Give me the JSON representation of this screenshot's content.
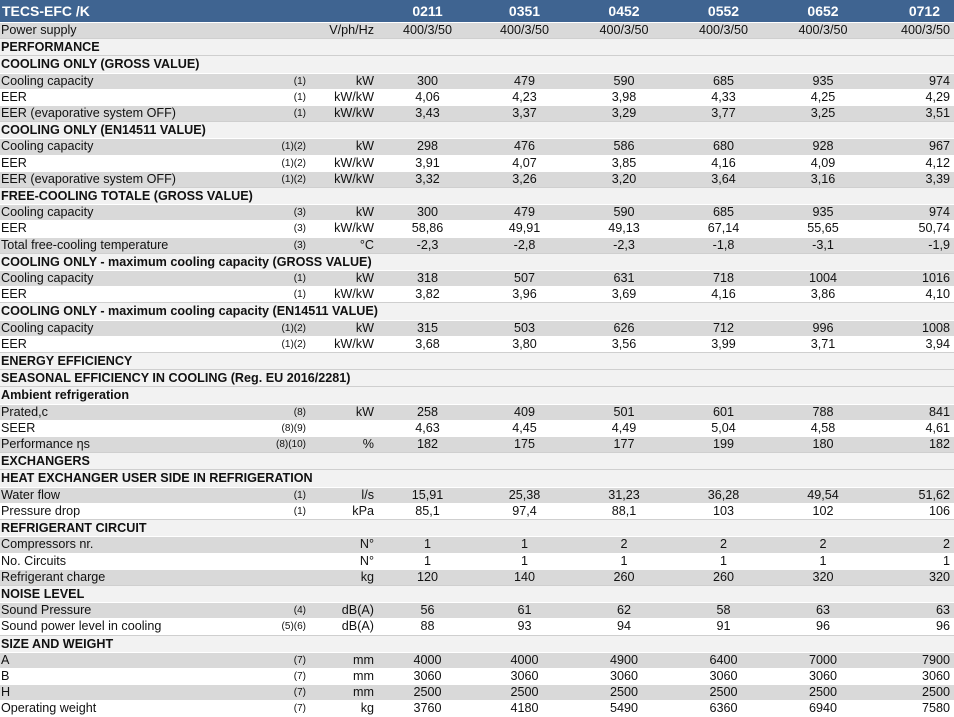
{
  "title": "TECS-EFC /K",
  "models": [
    "0211",
    "0351",
    "0452",
    "0552",
    "0652",
    "0712"
  ],
  "rows": [
    {
      "type": "row",
      "label": "Power supply",
      "note": "",
      "unit": "V/ph/Hz",
      "values": [
        "400/3/50",
        "400/3/50",
        "400/3/50",
        "400/3/50",
        "400/3/50",
        "400/3/50"
      ]
    },
    {
      "type": "section",
      "label": "PERFORMANCE"
    },
    {
      "type": "section",
      "label": "COOLING ONLY (GROSS VALUE)"
    },
    {
      "type": "row",
      "label": "Cooling capacity",
      "note": "(1)",
      "unit": "kW",
      "values": [
        "300",
        "479",
        "590",
        "685",
        "935",
        "974"
      ]
    },
    {
      "type": "row",
      "label": "EER",
      "note": "(1)",
      "unit": "kW/kW",
      "values": [
        "4,06",
        "4,23",
        "3,98",
        "4,33",
        "4,25",
        "4,29"
      ]
    },
    {
      "type": "row",
      "label": "EER (evaporative system OFF)",
      "note": "(1)",
      "unit": "kW/kW",
      "values": [
        "3,43",
        "3,37",
        "3,29",
        "3,77",
        "3,25",
        "3,51"
      ]
    },
    {
      "type": "section",
      "label": "COOLING ONLY (EN14511 VALUE)"
    },
    {
      "type": "row",
      "label": "Cooling capacity",
      "note": "(1)(2)",
      "unit": "kW",
      "values": [
        "298",
        "476",
        "586",
        "680",
        "928",
        "967"
      ]
    },
    {
      "type": "row",
      "label": "EER",
      "note": "(1)(2)",
      "unit": "kW/kW",
      "values": [
        "3,91",
        "4,07",
        "3,85",
        "4,16",
        "4,09",
        "4,12"
      ]
    },
    {
      "type": "row",
      "label": "EER (evaporative system OFF)",
      "note": "(1)(2)",
      "unit": "kW/kW",
      "values": [
        "3,32",
        "3,26",
        "3,20",
        "3,64",
        "3,16",
        "3,39"
      ]
    },
    {
      "type": "section",
      "label": "FREE-COOLING TOTALE (GROSS VALUE)"
    },
    {
      "type": "row",
      "label": "Cooling capacity",
      "note": "(3)",
      "unit": "kW",
      "values": [
        "300",
        "479",
        "590",
        "685",
        "935",
        "974"
      ]
    },
    {
      "type": "row",
      "label": "EER",
      "note": "(3)",
      "unit": "kW/kW",
      "values": [
        "58,86",
        "49,91",
        "49,13",
        "67,14",
        "55,65",
        "50,74"
      ]
    },
    {
      "type": "row",
      "label": "Total free-cooling temperature",
      "note": "(3)",
      "unit": "°C",
      "values": [
        "-2,3",
        "-2,8",
        "-2,3",
        "-1,8",
        "-3,1",
        "-1,9"
      ]
    },
    {
      "type": "section",
      "label": "COOLING ONLY - maximum cooling capacity (GROSS VALUE)"
    },
    {
      "type": "row",
      "label": "Cooling capacity",
      "note": "(1)",
      "unit": "kW",
      "values": [
        "318",
        "507",
        "631",
        "718",
        "1004",
        "1016"
      ]
    },
    {
      "type": "row",
      "label": "EER",
      "note": "(1)",
      "unit": "kW/kW",
      "values": [
        "3,82",
        "3,96",
        "3,69",
        "4,16",
        "3,86",
        "4,10"
      ]
    },
    {
      "type": "section",
      "label": "COOLING ONLY - maximum cooling capacity (EN14511 VALUE)"
    },
    {
      "type": "row",
      "label": "Cooling capacity",
      "note": "(1)(2)",
      "unit": "kW",
      "values": [
        "315",
        "503",
        "626",
        "712",
        "996",
        "1008"
      ]
    },
    {
      "type": "row",
      "label": "EER",
      "note": "(1)(2)",
      "unit": "kW/kW",
      "values": [
        "3,68",
        "3,80",
        "3,56",
        "3,99",
        "3,71",
        "3,94"
      ]
    },
    {
      "type": "section",
      "label": "ENERGY EFFICIENCY"
    },
    {
      "type": "section",
      "label": "SEASONAL EFFICIENCY IN COOLING (Reg. EU 2016/2281)"
    },
    {
      "type": "section",
      "label": "Ambient refrigeration"
    },
    {
      "type": "row",
      "label": "Prated,c",
      "note": "(8)",
      "unit": "kW",
      "values": [
        "258",
        "409",
        "501",
        "601",
        "788",
        "841"
      ]
    },
    {
      "type": "row",
      "label": "SEER",
      "note": "(8)(9)",
      "unit": "",
      "values": [
        "4,63",
        "4,45",
        "4,49",
        "5,04",
        "4,58",
        "4,61"
      ]
    },
    {
      "type": "row",
      "label": "Performance ηs",
      "note": "(8)(10)",
      "unit": "%",
      "values": [
        "182",
        "175",
        "177",
        "199",
        "180",
        "182"
      ]
    },
    {
      "type": "section",
      "label": "EXCHANGERS"
    },
    {
      "type": "section",
      "label": "HEAT EXCHANGER USER SIDE IN REFRIGERATION"
    },
    {
      "type": "row",
      "label": "Water flow",
      "note": "(1)",
      "unit": "l/s",
      "values": [
        "15,91",
        "25,38",
        "31,23",
        "36,28",
        "49,54",
        "51,62"
      ]
    },
    {
      "type": "row",
      "label": "Pressure drop",
      "note": "(1)",
      "unit": "kPa",
      "values": [
        "85,1",
        "97,4",
        "88,1",
        "103",
        "102",
        "106"
      ]
    },
    {
      "type": "section",
      "label": "REFRIGERANT CIRCUIT"
    },
    {
      "type": "row",
      "label": "Compressors nr.",
      "note": "",
      "unit": "N°",
      "values": [
        "1",
        "1",
        "2",
        "2",
        "2",
        "2"
      ]
    },
    {
      "type": "row",
      "label": "No. Circuits",
      "note": "",
      "unit": "N°",
      "values": [
        "1",
        "1",
        "1",
        "1",
        "1",
        "1"
      ]
    },
    {
      "type": "row",
      "label": "Refrigerant charge",
      "note": "",
      "unit": "kg",
      "values": [
        "120",
        "140",
        "260",
        "260",
        "320",
        "320"
      ]
    },
    {
      "type": "section",
      "label": "NOISE LEVEL"
    },
    {
      "type": "row",
      "label": "Sound Pressure",
      "note": "(4)",
      "unit": "dB(A)",
      "values": [
        "56",
        "61",
        "62",
        "58",
        "63",
        "63"
      ]
    },
    {
      "type": "row",
      "label": "Sound power level in cooling",
      "note": "(5)(6)",
      "unit": "dB(A)",
      "values": [
        "88",
        "93",
        "94",
        "91",
        "96",
        "96"
      ]
    },
    {
      "type": "section",
      "label": "SIZE AND WEIGHT"
    },
    {
      "type": "row",
      "label": "A",
      "note": "(7)",
      "unit": "mm",
      "values": [
        "4000",
        "4000",
        "4900",
        "6400",
        "7000",
        "7900"
      ]
    },
    {
      "type": "row",
      "label": "B",
      "note": "(7)",
      "unit": "mm",
      "values": [
        "3060",
        "3060",
        "3060",
        "3060",
        "3060",
        "3060"
      ]
    },
    {
      "type": "row",
      "label": "H",
      "note": "(7)",
      "unit": "mm",
      "values": [
        "2500",
        "2500",
        "2500",
        "2500",
        "2500",
        "2500"
      ]
    },
    {
      "type": "row",
      "label": "Operating weight",
      "note": "(7)",
      "unit": "kg",
      "values": [
        "3760",
        "4180",
        "5490",
        "6360",
        "6940",
        "7580"
      ]
    }
  ]
}
